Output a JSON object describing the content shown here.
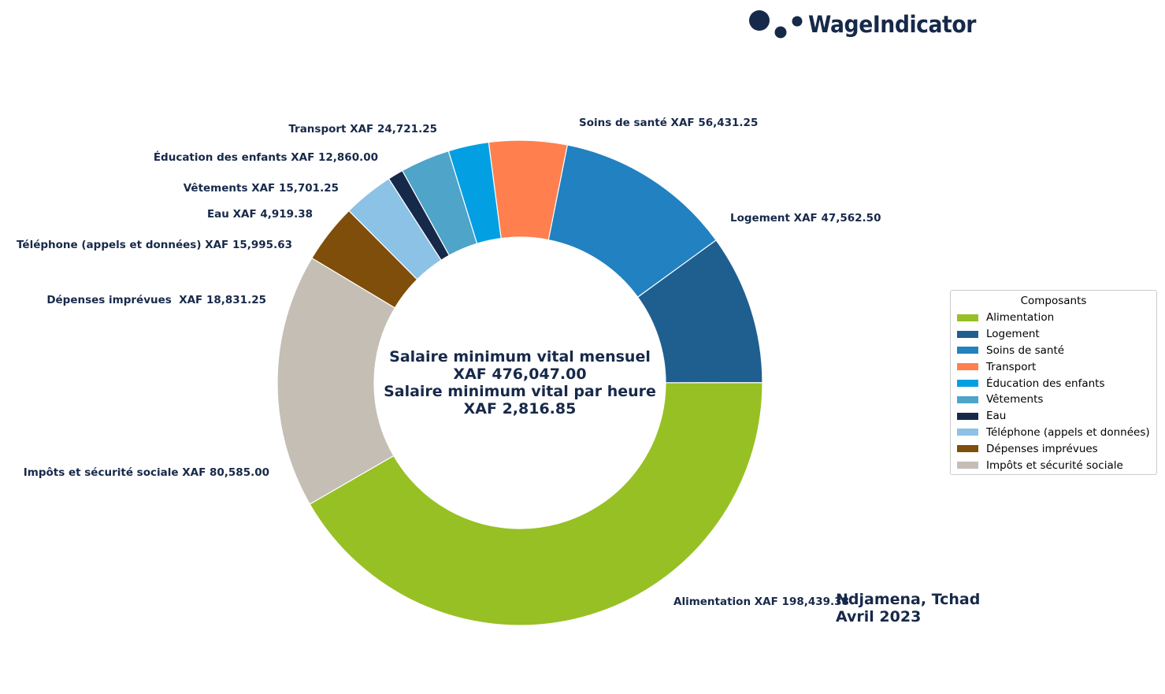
{
  "brand": {
    "name": "WageIndicator",
    "logo_icon": "three-dots-logo"
  },
  "location": {
    "city": "Ndjamena, Tchad",
    "date": "Avril 2023"
  },
  "center_text": {
    "line1": "Salaire minimum vital mensuel",
    "line2": "XAF 476,047.00",
    "line3": "Salaire minimum vital par heure",
    "line4": "XAF 2,816.85"
  },
  "chart_data": {
    "type": "pie",
    "variant": "donut",
    "currency": "XAF",
    "total": 476047.0,
    "legend_title": "Composants",
    "legend_placement": "right",
    "slices": [
      {
        "name": "Alimentation",
        "value": 198439.38,
        "label": "Alimentation XAF 198,439.38",
        "color": "#97c024"
      },
      {
        "name": "Logement",
        "value": 47562.5,
        "label": "Logement XAF 47,562.50",
        "color": "#1f5f8f"
      },
      {
        "name": "Soins de santé",
        "value": 56431.25,
        "label": "Soins de santé XAF 56,431.25",
        "color": "#2181c1"
      },
      {
        "name": "Transport",
        "value": 24721.25,
        "label": "Transport XAF 24,721.25",
        "color": "#ff7f4f"
      },
      {
        "name": "Éducation des enfants",
        "value": 12860.0,
        "label": "Éducation des enfants XAF 12,860.00",
        "color": "#039fe3"
      },
      {
        "name": "Vêtements",
        "value": 15701.25,
        "label": "Vêtements XAF 15,701.25",
        "color": "#4fa4c9"
      },
      {
        "name": "Eau",
        "value": 4919.38,
        "label": "Eau XAF 4,919.38",
        "color": "#17294a"
      },
      {
        "name": "Téléphone (appels et données)",
        "value": 15995.63,
        "label": "Téléphone (appels et données) XAF 15,995.63",
        "color": "#8cc2e6"
      },
      {
        "name": "Dépenses imprévues",
        "value": 18831.25,
        "label": "Dépenses imprévues  XAF 18,831.25",
        "color": "#7f4e0a"
      },
      {
        "name": "Impôts et sécurité sociale",
        "value": 80585.0,
        "label": "Impôts et sécurité sociale XAF 80,585.00",
        "color": "#c4beb4"
      }
    ]
  }
}
